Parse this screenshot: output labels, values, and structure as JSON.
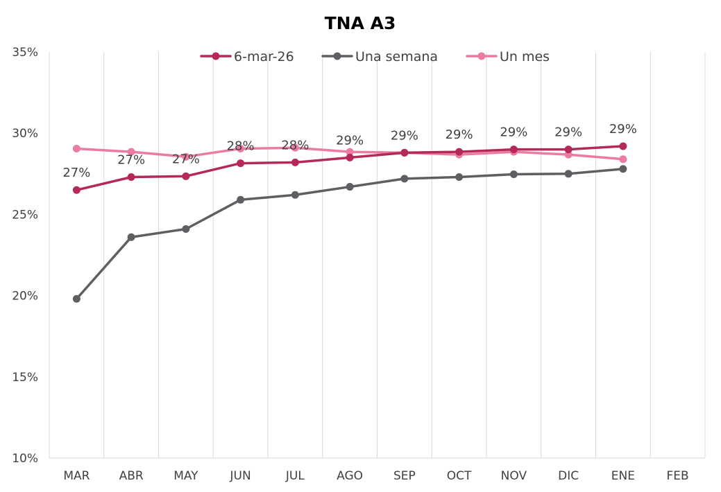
{
  "chart_data": {
    "type": "line",
    "title": "TNA A3",
    "xlabel": "",
    "ylabel": "",
    "categories": [
      "MAR",
      "ABR",
      "MAY",
      "JUN",
      "JUL",
      "AGO",
      "SEP",
      "OCT",
      "NOV",
      "DIC",
      "ENE",
      "FEB"
    ],
    "ylim": [
      0.1,
      0.35
    ],
    "yticks": [
      0.1,
      0.15,
      0.2,
      0.25,
      0.3,
      0.35
    ],
    "ytick_labels": [
      "10%",
      "15%",
      "20%",
      "25%",
      "30%",
      "35%"
    ],
    "grid": "vertical",
    "legend_position": "top-center",
    "series": [
      {
        "name": "6-mar-26",
        "color": "#B5285A",
        "values": [
          0.265,
          0.273,
          0.2735,
          0.2815,
          0.282,
          0.285,
          0.288,
          0.2885,
          0.29,
          0.29,
          0.292,
          null
        ],
        "data_labels": [
          "27%",
          "27%",
          "27%",
          "28%",
          "28%",
          "29%",
          "29%",
          "29%",
          "29%",
          "29%",
          "29%",
          ""
        ]
      },
      {
        "name": "Una semana",
        "color": "#5F5F63",
        "values": [
          0.198,
          0.236,
          0.241,
          0.259,
          0.262,
          0.267,
          0.272,
          0.273,
          0.2747,
          0.275,
          0.278,
          null
        ]
      },
      {
        "name": "Un mes",
        "color": "#EB7BA3",
        "values": [
          0.2905,
          0.2885,
          0.2855,
          0.2905,
          0.291,
          0.2885,
          0.288,
          0.2868,
          0.2885,
          0.2868,
          0.284,
          null
        ]
      }
    ]
  }
}
